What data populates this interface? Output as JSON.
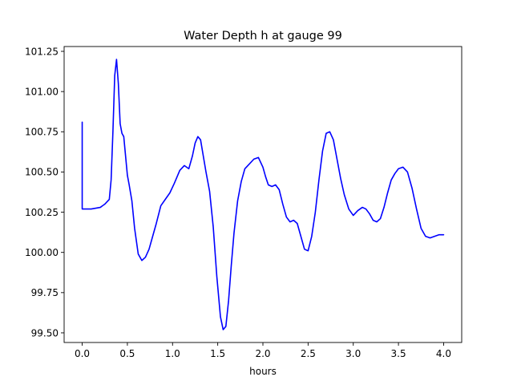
{
  "chart_data": {
    "type": "line",
    "title": "Water Depth h at gauge 99",
    "xlabel": "hours",
    "ylabel": "",
    "xlim": [
      -0.2,
      4.2
    ],
    "ylim": [
      99.44,
      101.28
    ],
    "xticks": [
      0.0,
      0.5,
      1.0,
      1.5,
      2.0,
      2.5,
      3.0,
      3.5,
      4.0
    ],
    "xtick_labels": [
      "0.0",
      "0.5",
      "1.0",
      "1.5",
      "2.0",
      "2.5",
      "3.0",
      "3.5",
      "4.0"
    ],
    "yticks": [
      99.5,
      99.75,
      100.0,
      100.25,
      100.5,
      100.75,
      101.0,
      101.25
    ],
    "ytick_labels": [
      "99.50",
      "99.75",
      "100.00",
      "100.25",
      "100.50",
      "100.75",
      "101.00",
      "101.25"
    ],
    "grid": false,
    "series": [
      {
        "color": "#0000ff",
        "x": [
          0.0,
          0.0,
          0.02,
          0.1,
          0.2,
          0.25,
          0.3,
          0.32,
          0.34,
          0.36,
          0.38,
          0.4,
          0.42,
          0.44,
          0.46,
          0.48,
          0.5,
          0.52,
          0.55,
          0.58,
          0.62,
          0.66,
          0.7,
          0.74,
          0.78,
          0.82,
          0.87,
          0.92,
          0.97,
          1.02,
          1.08,
          1.13,
          1.18,
          1.22,
          1.25,
          1.28,
          1.31,
          1.34,
          1.37,
          1.41,
          1.45,
          1.49,
          1.53,
          1.56,
          1.59,
          1.62,
          1.65,
          1.68,
          1.72,
          1.76,
          1.8,
          1.85,
          1.9,
          1.95,
          2.0,
          2.03,
          2.06,
          2.1,
          2.14,
          2.18,
          2.22,
          2.26,
          2.3,
          2.34,
          2.38,
          2.42,
          2.46,
          2.5,
          2.54,
          2.58,
          2.62,
          2.66,
          2.7,
          2.74,
          2.78,
          2.82,
          2.86,
          2.9,
          2.95,
          3.0,
          3.05,
          3.1,
          3.14,
          3.18,
          3.22,
          3.26,
          3.3,
          3.34,
          3.38,
          3.42,
          3.46,
          3.5,
          3.55,
          3.6,
          3.65,
          3.7,
          3.75,
          3.8,
          3.85,
          3.9,
          3.95,
          4.0
        ],
        "y": [
          100.81,
          100.27,
          100.27,
          100.27,
          100.28,
          100.3,
          100.33,
          100.45,
          100.75,
          101.1,
          101.2,
          101.05,
          100.8,
          100.74,
          100.72,
          100.6,
          100.48,
          100.42,
          100.32,
          100.15,
          99.99,
          99.95,
          99.97,
          100.02,
          100.1,
          100.18,
          100.29,
          100.33,
          100.37,
          100.43,
          100.51,
          100.54,
          100.52,
          100.6,
          100.68,
          100.72,
          100.7,
          100.6,
          100.5,
          100.38,
          100.16,
          99.85,
          99.6,
          99.52,
          99.54,
          99.7,
          99.92,
          100.12,
          100.32,
          100.44,
          100.52,
          100.55,
          100.58,
          100.59,
          100.53,
          100.47,
          100.42,
          100.41,
          100.42,
          100.39,
          100.3,
          100.22,
          100.19,
          100.2,
          100.18,
          100.1,
          100.02,
          100.01,
          100.1,
          100.25,
          100.45,
          100.63,
          100.74,
          100.75,
          100.7,
          100.58,
          100.46,
          100.36,
          100.27,
          100.23,
          100.26,
          100.28,
          100.27,
          100.24,
          100.2,
          100.19,
          100.21,
          100.28,
          100.37,
          100.45,
          100.49,
          100.52,
          100.53,
          100.5,
          100.4,
          100.27,
          100.15,
          100.1,
          100.09,
          100.1,
          100.11,
          100.11
        ]
      }
    ]
  }
}
